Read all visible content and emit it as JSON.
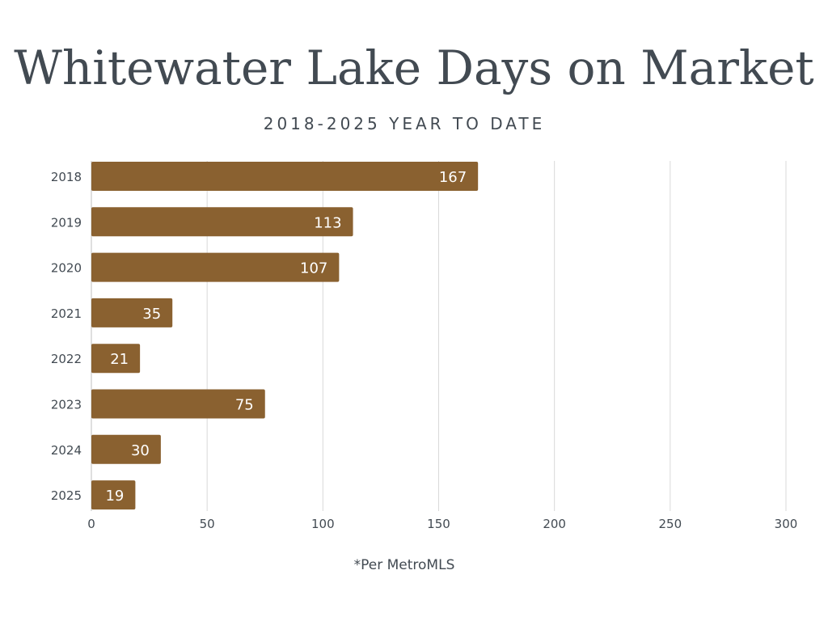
{
  "chart_data": {
    "type": "bar",
    "orientation": "horizontal",
    "title": "Whitewater Lake Days on Market",
    "subtitle": "2018-2025 YEAR TO DATE",
    "categories": [
      "2018",
      "2019",
      "2020",
      "2021",
      "2022",
      "2023",
      "2024",
      "2025"
    ],
    "values": [
      167,
      113,
      107,
      35,
      21,
      75,
      30,
      19
    ],
    "data_labels": [
      "167",
      "113",
      "107",
      "35",
      "21",
      "75",
      "30",
      "19"
    ],
    "x_ticks": [
      "0",
      "50",
      "100",
      "150",
      "200",
      "250",
      "300"
    ],
    "xlim": [
      0,
      300
    ],
    "grid": true,
    "legend": false,
    "bar_color": "#8a6130",
    "label_color": "#ffffff",
    "footnote": "*Per MetroMLS"
  }
}
